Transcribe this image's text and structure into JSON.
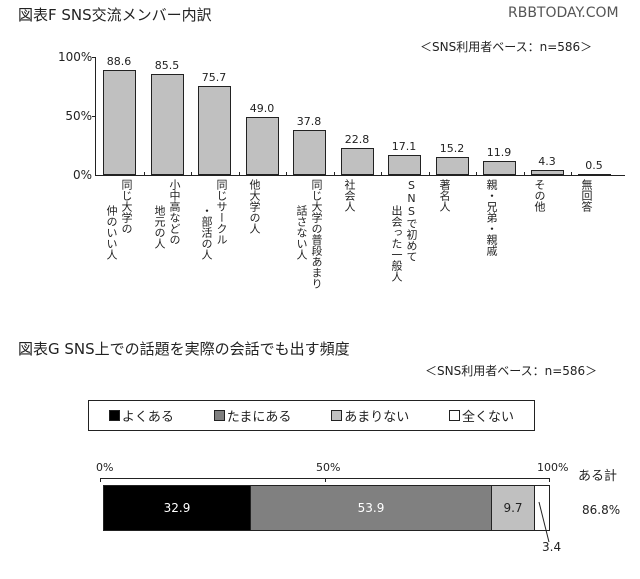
{
  "watermark": "RBBTODAY.COM",
  "chart_data": [
    {
      "type": "bar",
      "title": "図表F SNS交流メンバー内訳",
      "subtitle": "＜SNS利用者ベース：n=586＞",
      "xlabel": "",
      "ylabel": "",
      "ylim": [
        0,
        100
      ],
      "yticks": [
        "0%",
        "50%",
        "100%"
      ],
      "grid": false,
      "categories": [
        [
          "同じ大学の",
          "仲のいい人"
        ],
        [
          "小中高などの",
          "地元の人"
        ],
        [
          "同じサークル",
          "・部活の人"
        ],
        [
          "他大学の人"
        ],
        [
          "同じ大学の普段あまり",
          "話さない人"
        ],
        [
          "社会人"
        ],
        [
          "SNSで初めて",
          "出会った一般人"
        ],
        [
          "著名人"
        ],
        [
          "親・兄弟・親戚"
        ],
        [
          "その他"
        ],
        [
          "無回答"
        ]
      ],
      "values": [
        88.6,
        85.5,
        75.7,
        49.0,
        37.8,
        22.8,
        17.1,
        15.2,
        11.9,
        4.3,
        0.5
      ],
      "value_labels": [
        "88.6",
        "85.5",
        "75.7",
        "49.0",
        "37.8",
        "22.8",
        "17.1",
        "15.2",
        "11.9",
        "4.3",
        "0.5"
      ],
      "bar_color": "#c0c0c0"
    },
    {
      "type": "bar",
      "orientation": "horizontal-stacked",
      "title": "図表G SNS上での話題を実際の会話でも出す頻度",
      "subtitle": "＜SNS利用者ベース：n=586＞",
      "xlim": [
        0,
        100
      ],
      "xticks": [
        "0%",
        "50%",
        "100%"
      ],
      "legend_position": "top",
      "series": [
        {
          "name": "よくある",
          "values": [
            32.9
          ],
          "label": "32.9",
          "color": "#000000",
          "text_color": "#ffffff"
        },
        {
          "name": "たまにある",
          "values": [
            53.9
          ],
          "label": "53.9",
          "color": "#808080",
          "text_color": "#ffffff"
        },
        {
          "name": "あまりない",
          "values": [
            9.7
          ],
          "label": "9.7",
          "color": "#c0c0c0",
          "text_color": "#222222"
        },
        {
          "name": "全くない",
          "values": [
            3.4
          ],
          "label": "3.4",
          "color": "#ffffff",
          "text_color": "#222222"
        }
      ],
      "summary": {
        "label": "ある計",
        "value": "86.8%"
      }
    }
  ]
}
